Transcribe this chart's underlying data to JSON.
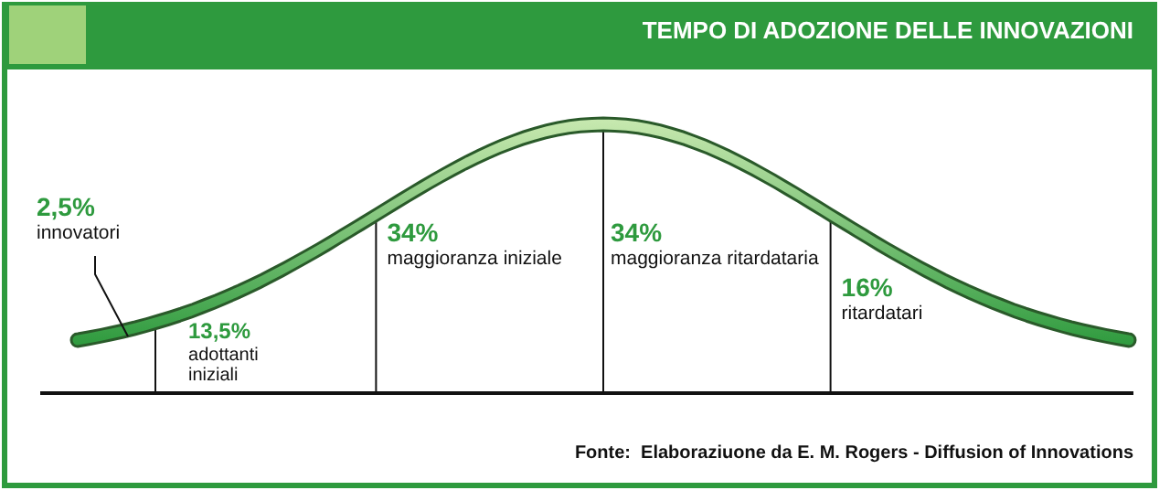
{
  "chart_data": {
    "type": "other",
    "title": "TEMPO DI ADOZIONE DELLE INNOVAZIONI",
    "categories": [
      "innovatori",
      "adottanti iniziali",
      "maggioranza iniziale",
      "maggioranza ritardataria",
      "ritardatari"
    ],
    "values": [
      2.5,
      13.5,
      34,
      34,
      16
    ],
    "value_labels": [
      "2,5%",
      "13,5%",
      "34%",
      "34%",
      "16%"
    ],
    "color": "#2e9a3e",
    "annotations": [
      "Fonte:  Elaboraziuone da E. M. Rogers - Diffusion of Innovations"
    ]
  }
}
